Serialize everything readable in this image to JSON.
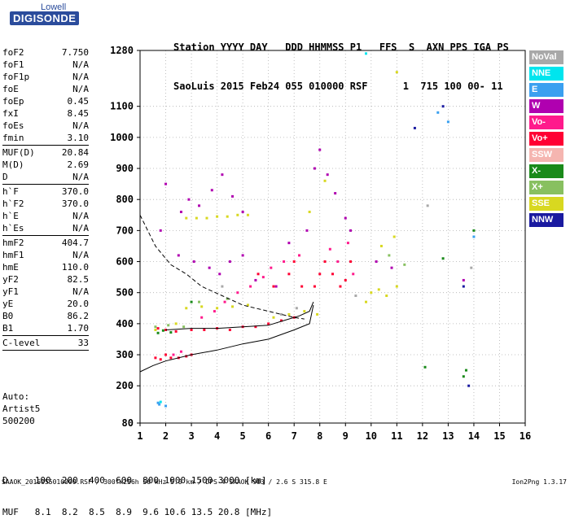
{
  "logo": {
    "maker": "Lowell",
    "brand": "DIGISONDE"
  },
  "header": {
    "line1": "Station YYYY DAY   DDD HHMMSS P1   FFS  S  AXN PPS IGA PS",
    "line2": "SaoLuis 2015 Feb24 055 010000 RSF      1  715 100 00- 11"
  },
  "params": [
    {
      "label": "foF2",
      "value": "7.750"
    },
    {
      "label": "foF1",
      "value": "N/A"
    },
    {
      "label": "foF1p",
      "value": "N/A"
    },
    {
      "label": "foE",
      "value": "N/A"
    },
    {
      "label": "foEp",
      "value": "0.45"
    },
    {
      "label": "fxI",
      "value": "8.45"
    },
    {
      "label": "foEs",
      "value": "N/A"
    },
    {
      "label": "fmin",
      "value": "3.10"
    },
    {
      "sep": true
    },
    {
      "label": "MUF(D)",
      "value": "20.84"
    },
    {
      "label": "M(D)",
      "value": "2.69"
    },
    {
      "label": "D",
      "value": "N/A"
    },
    {
      "sep": true
    },
    {
      "label": "h`F",
      "value": "370.0"
    },
    {
      "label": "h`F2",
      "value": "370.0"
    },
    {
      "label": "h`E",
      "value": "N/A"
    },
    {
      "label": "h`Es",
      "value": "N/A"
    },
    {
      "sep": true
    },
    {
      "label": "hmF2",
      "value": "404.7"
    },
    {
      "label": "hmF1",
      "value": "N/A"
    },
    {
      "label": "hmE",
      "value": "110.0"
    },
    {
      "label": "yF2",
      "value": "82.5"
    },
    {
      "label": "yF1",
      "value": "N/A"
    },
    {
      "label": "yE",
      "value": "20.0"
    },
    {
      "label": "B0",
      "value": "86.2"
    },
    {
      "label": "B1",
      "value": "1.70"
    },
    {
      "sep": true
    },
    {
      "label": "C-level",
      "value": "33"
    },
    {
      "sep": true
    }
  ],
  "auto": {
    "line1": "Auto:",
    "line2": "Artist5",
    "line3": "500200"
  },
  "legend": [
    {
      "label": "NoVal",
      "color": "#a8a8a8"
    },
    {
      "label": "NNE",
      "color": "#00e5ee"
    },
    {
      "label": "E",
      "color": "#3aa0f0"
    },
    {
      "label": "W",
      "color": "#b000b0"
    },
    {
      "label": "Vo-",
      "color": "#ff1a8c"
    },
    {
      "label": "Vo+",
      "color": "#ff0033"
    },
    {
      "label": "SSW",
      "color": "#f5b5b0"
    },
    {
      "label": "X-",
      "color": "#1a8a1a"
    },
    {
      "label": "X+",
      "color": "#88c060"
    },
    {
      "label": "SSE",
      "color": "#d8d820"
    },
    {
      "label": "NNW",
      "color": "#1a1aa0"
    }
  ],
  "bottom": {
    "d_line": "D     100  200  400  600  800 1000 1500 3000 [km]",
    "muf_line": "MUF   8.1  8.2  8.5  8.9  9.6 10.6 13.5 20.8 [MHz]"
  },
  "footer": "SAAOK_2015055010000.RSF / 300fx256h 50 kHz 5.0 km / DPS-4 SAAOK 903 / 2.6 S 315.8 E",
  "version": "Ion2Png 1.3.17",
  "chart_data": {
    "type": "scatter",
    "x_ticks": [
      1,
      2,
      3,
      4,
      5,
      6,
      7,
      8,
      9,
      10,
      11,
      12,
      13,
      14,
      15,
      16
    ],
    "y_ticks": [
      80,
      200,
      300,
      400,
      500,
      600,
      700,
      800,
      900,
      1000,
      1100,
      1280
    ],
    "xlim": [
      1,
      16
    ],
    "ylim": [
      80,
      1280
    ],
    "grid": true,
    "legend_position": "right",
    "series": [
      {
        "color": "#ff0033",
        "points": [
          [
            1.6,
            290
          ],
          [
            1.8,
            285
          ],
          [
            2.0,
            300
          ],
          [
            2.2,
            290
          ],
          [
            2.5,
            290
          ],
          [
            2.8,
            295
          ],
          [
            3.0,
            300
          ],
          [
            1.7,
            385
          ],
          [
            2.0,
            380
          ],
          [
            2.4,
            375
          ],
          [
            3.0,
            380
          ],
          [
            3.5,
            380
          ],
          [
            4.0,
            385
          ],
          [
            4.5,
            380
          ],
          [
            5.0,
            390
          ],
          [
            5.5,
            390
          ],
          [
            6.0,
            400
          ],
          [
            6.5,
            410
          ],
          [
            7.0,
            420
          ],
          [
            7.8,
            520
          ],
          [
            8.0,
            560
          ],
          [
            8.2,
            600
          ],
          [
            8.5,
            560
          ],
          [
            8.8,
            520
          ],
          [
            9.0,
            540
          ],
          [
            9.2,
            600
          ],
          [
            6.8,
            560
          ],
          [
            7.0,
            600
          ],
          [
            7.3,
            520
          ],
          [
            5.6,
            560
          ],
          [
            6.2,
            520
          ]
        ]
      },
      {
        "color": "#b000b0",
        "points": [
          [
            2.6,
            760
          ],
          [
            2.9,
            800
          ],
          [
            3.3,
            780
          ],
          [
            3.8,
            830
          ],
          [
            4.2,
            880
          ],
          [
            4.6,
            810
          ],
          [
            5.0,
            760
          ],
          [
            2.5,
            620
          ],
          [
            3.1,
            600
          ],
          [
            3.7,
            580
          ],
          [
            4.1,
            560
          ],
          [
            4.5,
            600
          ],
          [
            5.0,
            620
          ],
          [
            5.5,
            540
          ],
          [
            6.3,
            520
          ],
          [
            6.8,
            660
          ],
          [
            7.8,
            900
          ],
          [
            8.0,
            960
          ],
          [
            8.3,
            880
          ],
          [
            8.6,
            820
          ],
          [
            9.0,
            740
          ],
          [
            9.2,
            700
          ],
          [
            7.5,
            700
          ],
          [
            2.0,
            850
          ],
          [
            1.8,
            700
          ],
          [
            10.2,
            600
          ],
          [
            10.8,
            580
          ],
          [
            13.6,
            540
          ]
        ]
      },
      {
        "color": "#d8d820",
        "points": [
          [
            2.8,
            740
          ],
          [
            3.2,
            740
          ],
          [
            3.6,
            740
          ],
          [
            4.0,
            745
          ],
          [
            4.4,
            745
          ],
          [
            4.8,
            750
          ],
          [
            5.2,
            750
          ],
          [
            2.8,
            450
          ],
          [
            3.4,
            455
          ],
          [
            4.0,
            450
          ],
          [
            4.6,
            455
          ],
          [
            5.2,
            460
          ],
          [
            10.0,
            500
          ],
          [
            10.3,
            510
          ],
          [
            10.6,
            490
          ],
          [
            9.8,
            470
          ],
          [
            11.0,
            520
          ],
          [
            10.4,
            650
          ],
          [
            10.9,
            680
          ],
          [
            11.0,
            1210
          ],
          [
            1.6,
            380
          ],
          [
            2.4,
            400
          ],
          [
            6.2,
            420
          ],
          [
            6.8,
            430
          ],
          [
            7.4,
            440
          ],
          [
            7.9,
            430
          ],
          [
            8.2,
            860
          ],
          [
            7.6,
            760
          ]
        ]
      },
      {
        "color": "#ff1a8c",
        "points": [
          [
            2.3,
            300
          ],
          [
            2.6,
            310
          ],
          [
            3.4,
            420
          ],
          [
            3.9,
            440
          ],
          [
            4.3,
            470
          ],
          [
            4.8,
            500
          ],
          [
            5.3,
            520
          ],
          [
            5.8,
            550
          ],
          [
            6.1,
            580
          ],
          [
            6.6,
            600
          ],
          [
            7.2,
            620
          ],
          [
            8.4,
            640
          ],
          [
            8.7,
            600
          ],
          [
            9.1,
            660
          ],
          [
            9.3,
            560
          ]
        ]
      },
      {
        "color": "#1a8a1a",
        "points": [
          [
            1.7,
            370
          ],
          [
            1.9,
            378
          ],
          [
            2.2,
            372
          ],
          [
            3.0,
            470
          ],
          [
            12.1,
            260
          ],
          [
            13.7,
            250
          ],
          [
            13.6,
            230
          ],
          [
            12.8,
            610
          ],
          [
            14.0,
            700
          ]
        ]
      },
      {
        "color": "#88c060",
        "points": [
          [
            1.6,
            390
          ],
          [
            2.1,
            395
          ],
          [
            2.7,
            390
          ],
          [
            3.3,
            470
          ],
          [
            4.4,
            480
          ],
          [
            10.7,
            620
          ],
          [
            11.3,
            590
          ]
        ]
      },
      {
        "color": "#3aa0f0",
        "points": [
          [
            1.75,
            140
          ],
          [
            1.7,
            145
          ],
          [
            13.0,
            1050
          ],
          [
            14.0,
            680
          ],
          [
            12.6,
            1080
          ],
          [
            2.0,
            135
          ]
        ]
      },
      {
        "color": "#00e5ee",
        "points": [
          [
            9.8,
            1270
          ],
          [
            1.8,
            148
          ]
        ]
      },
      {
        "color": "#1a1aa0",
        "points": [
          [
            12.8,
            1100
          ],
          [
            13.6,
            520
          ],
          [
            11.7,
            1030
          ],
          [
            13.8,
            200
          ]
        ]
      },
      {
        "color": "#a8a8a8",
        "points": [
          [
            6.5,
            430
          ],
          [
            7.1,
            450
          ],
          [
            4.2,
            520
          ],
          [
            9.4,
            490
          ],
          [
            12.2,
            780
          ],
          [
            13.9,
            580
          ]
        ]
      }
    ],
    "traces": [
      {
        "style": "solid",
        "points": [
          [
            1.0,
            245
          ],
          [
            1.5,
            265
          ],
          [
            2.0,
            280
          ],
          [
            3.0,
            300
          ],
          [
            4.0,
            315
          ],
          [
            5.0,
            335
          ],
          [
            6.0,
            350
          ],
          [
            7.0,
            380
          ],
          [
            7.6,
            400
          ],
          [
            7.75,
            460
          ]
        ]
      },
      {
        "style": "solid",
        "points": [
          [
            2.0,
            380
          ],
          [
            3.0,
            385
          ],
          [
            4.0,
            385
          ],
          [
            5.0,
            390
          ],
          [
            6.0,
            395
          ],
          [
            6.6,
            410
          ],
          [
            7.2,
            425
          ],
          [
            7.6,
            440
          ],
          [
            7.75,
            470
          ]
        ]
      },
      {
        "style": "dashed",
        "points": [
          [
            1.0,
            750
          ],
          [
            1.6,
            650
          ],
          [
            2.2,
            590
          ],
          [
            2.8,
            560
          ],
          [
            3.4,
            520
          ],
          [
            4.2,
            490
          ],
          [
            5.0,
            460
          ],
          [
            6.0,
            440
          ],
          [
            7.0,
            420
          ],
          [
            7.4,
            415
          ]
        ]
      }
    ]
  }
}
